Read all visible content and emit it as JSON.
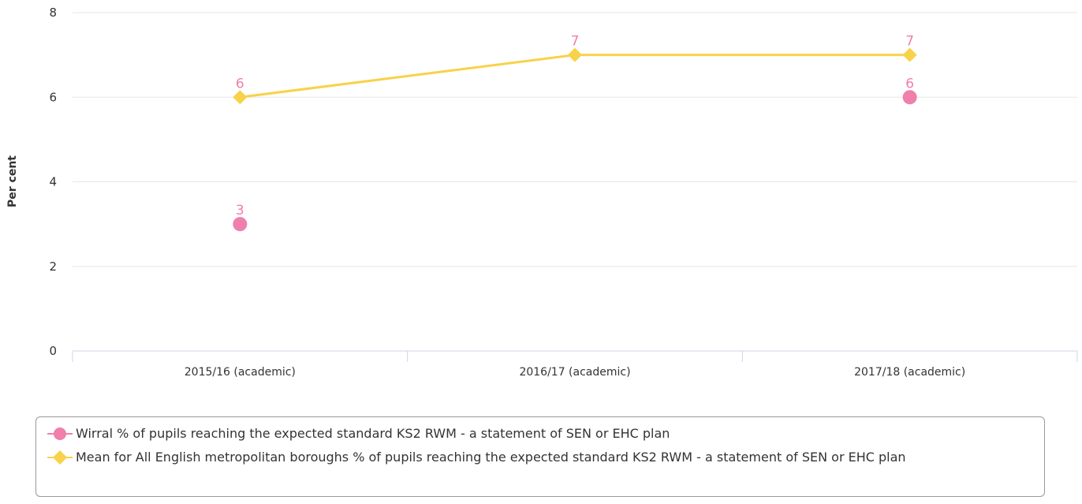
{
  "chart_data": {
    "type": "line",
    "categories": [
      "2015/16 (academic)",
      "2016/17 (academic)",
      "2017/18 (academic)"
    ],
    "ylabel": "Per cent",
    "ylim": [
      0,
      8
    ],
    "yticks": [
      0,
      2,
      4,
      6,
      8
    ],
    "grid": true,
    "legend_position": "bottom",
    "series": [
      {
        "name": "Wirral % of pupils reaching the expected standard KS2 RWM - a statement of SEN or EHC plan",
        "values": [
          3,
          null,
          6
        ],
        "color": "#f07fab",
        "marker": "circle",
        "line": false
      },
      {
        "name": "Mean for All English metropolitan boroughs % of pupils reaching the expected standard KS2 RWM - a statement of SEN or EHC plan",
        "values": [
          6,
          7,
          7
        ],
        "color": "#f8d248",
        "marker": "diamond",
        "line": true
      }
    ],
    "label_color": "#ef7fa9"
  }
}
